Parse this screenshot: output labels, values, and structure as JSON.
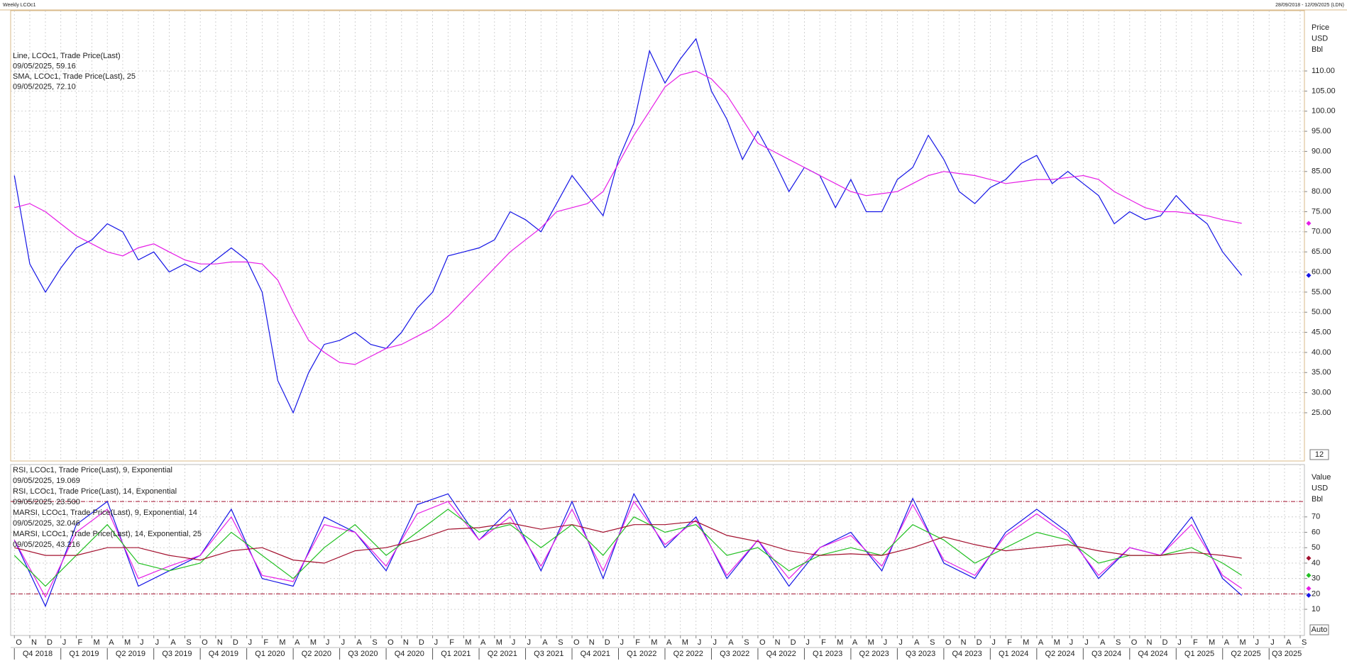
{
  "header": {
    "title": "Weekly LCOc1",
    "range": "28/09/2018 - 12/09/2025 (LDN)"
  },
  "chart_data": [
    {
      "type": "line",
      "unit_lines": [
        "Price",
        "USD",
        "Bbl"
      ],
      "scale_box": "12",
      "xlim": [
        2018.73,
        2025.69
      ],
      "ylim": [
        13,
        125
      ],
      "yticks": [
        {
          "value": 25,
          "label": "25.00"
        },
        {
          "value": 30,
          "label": "30.00"
        },
        {
          "value": 35,
          "label": "35.00"
        },
        {
          "value": 40,
          "label": "40.00"
        },
        {
          "value": 45,
          "label": "45.00"
        },
        {
          "value": 50,
          "label": "50.00"
        },
        {
          "value": 55,
          "label": "55.00"
        },
        {
          "value": 60,
          "label": "60.00"
        },
        {
          "value": 65,
          "label": "65.00"
        },
        {
          "value": 70,
          "label": "70.00"
        },
        {
          "value": 75,
          "label": "75.00"
        },
        {
          "value": 80,
          "label": "80.00"
        },
        {
          "value": 85,
          "label": "85.00"
        },
        {
          "value": 90,
          "label": "90.00"
        },
        {
          "value": 95,
          "label": "95.00"
        },
        {
          "value": 100,
          "label": "100.00"
        },
        {
          "value": 105,
          "label": "105.00"
        },
        {
          "value": 110,
          "label": "110.00"
        }
      ],
      "grid": true,
      "x": [
        2018.75,
        2018.833,
        2018.917,
        2019,
        2019.083,
        2019.167,
        2019.25,
        2019.333,
        2019.417,
        2019.5,
        2019.583,
        2019.667,
        2019.75,
        2019.833,
        2019.917,
        2020,
        2020.083,
        2020.167,
        2020.25,
        2020.333,
        2020.417,
        2020.5,
        2020.583,
        2020.667,
        2020.75,
        2020.833,
        2020.917,
        2021,
        2021.083,
        2021.167,
        2021.25,
        2021.333,
        2021.417,
        2021.5,
        2021.583,
        2021.667,
        2021.75,
        2021.833,
        2021.917,
        2022,
        2022.083,
        2022.167,
        2022.25,
        2022.333,
        2022.417,
        2022.5,
        2022.583,
        2022.667,
        2022.75,
        2022.833,
        2022.917,
        2023,
        2023.083,
        2023.167,
        2023.25,
        2023.333,
        2023.417,
        2023.5,
        2023.583,
        2023.667,
        2023.75,
        2023.833,
        2023.917,
        2024,
        2024.083,
        2024.167,
        2024.25,
        2024.333,
        2024.417,
        2024.5,
        2024.583,
        2024.667,
        2024.75,
        2024.833,
        2024.917,
        2025,
        2025.083,
        2025.167,
        2025.25,
        2025.353
      ],
      "series": [
        {
          "name": "Line, LCOc1, Trade Price(Last)",
          "last_label": "09/05/2025, 59.16",
          "color": "#1414e6",
          "values": [
            84,
            62,
            55,
            61,
            66,
            68,
            72,
            70,
            63,
            65,
            60,
            62,
            60,
            63,
            66,
            63,
            55,
            33,
            25,
            35,
            42,
            43,
            45,
            42,
            41,
            45,
            51,
            55,
            64,
            65,
            66,
            68,
            75,
            73,
            70,
            77,
            84,
            79,
            74,
            88,
            97,
            115,
            107,
            113,
            118,
            105,
            98,
            88,
            95,
            88,
            80,
            86,
            84,
            76,
            83,
            75,
            75,
            83,
            86,
            94,
            88,
            80,
            77,
            81,
            83,
            87,
            89,
            82,
            85,
            82,
            79,
            72,
            75,
            73,
            74,
            79,
            75,
            72,
            65,
            59.16
          ]
        },
        {
          "name": "SMA, LCOc1, Trade Price(Last),  25",
          "last_label": "09/05/2025, 72.10",
          "color": "#e61ee6",
          "values": [
            76,
            77,
            75,
            72,
            69,
            67,
            65,
            64,
            66,
            67,
            65,
            63,
            62,
            62,
            62.5,
            62.5,
            62,
            58,
            50,
            43,
            40,
            37.5,
            37,
            39,
            41,
            42,
            44,
            46,
            49,
            53,
            57,
            61,
            65,
            68,
            71,
            75,
            76,
            77,
            80,
            87,
            94,
            100,
            106,
            109,
            110,
            108,
            104,
            98,
            92,
            90,
            88,
            86,
            84,
            82,
            80,
            79,
            79.5,
            80,
            82,
            84,
            85,
            84.5,
            84,
            83,
            82,
            82.5,
            83,
            83,
            83.5,
            84,
            83,
            80,
            78,
            76,
            75,
            75,
            74.5,
            74,
            73,
            72.1
          ]
        }
      ]
    },
    {
      "type": "line",
      "unit_lines": [
        "Value",
        "USD",
        "Bbl"
      ],
      "scale_box": "Auto",
      "xlim": [
        2018.73,
        2025.69
      ],
      "ylim": [
        -7,
        104
      ],
      "yticks": [
        10,
        20,
        30,
        40,
        50,
        60,
        70
      ],
      "hlines": [
        80,
        20
      ],
      "grid": true,
      "x": [
        2018.75,
        2018.917,
        2019.083,
        2019.25,
        2019.417,
        2019.583,
        2019.75,
        2019.917,
        2020.083,
        2020.25,
        2020.417,
        2020.583,
        2020.75,
        2020.917,
        2021.083,
        2021.25,
        2021.417,
        2021.583,
        2021.75,
        2021.917,
        2022.083,
        2022.25,
        2022.417,
        2022.583,
        2022.75,
        2022.917,
        2023.083,
        2023.25,
        2023.417,
        2023.583,
        2023.75,
        2023.917,
        2024.083,
        2024.25,
        2024.417,
        2024.583,
        2024.75,
        2024.917,
        2025.083,
        2025.25,
        2025.353
      ],
      "series": [
        {
          "name": "RSI, LCOc1, Trade Price(Last),  9, Exponential",
          "last_label": "09/05/2025, 19.069",
          "color": "#1414e6",
          "values": [
            55,
            12,
            65,
            80,
            25,
            35,
            45,
            75,
            30,
            25,
            70,
            60,
            35,
            78,
            85,
            55,
            75,
            35,
            80,
            30,
            85,
            50,
            70,
            30,
            55,
            25,
            50,
            60,
            35,
            82,
            40,
            30,
            60,
            75,
            60,
            30,
            50,
            45,
            70,
            30,
            19.069
          ]
        },
        {
          "name": "RSI, LCOc1, Trade Price(Last),  14, Exponential",
          "last_label": "09/05/2025, 23.500",
          "color": "#e61ee6",
          "values": [
            55,
            18,
            60,
            75,
            30,
            38,
            45,
            70,
            32,
            28,
            65,
            60,
            38,
            72,
            80,
            55,
            70,
            38,
            75,
            35,
            80,
            52,
            68,
            32,
            55,
            30,
            50,
            58,
            38,
            78,
            42,
            32,
            58,
            72,
            58,
            32,
            50,
            45,
            65,
            32,
            23.5
          ]
        },
        {
          "name": "MARSI, LCOc1, Trade Price(Last),  9, Exponential, 14",
          "last_label": "09/05/2025, 32.046",
          "color": "#22c022",
          "values": [
            45,
            25,
            45,
            65,
            40,
            35,
            40,
            60,
            45,
            30,
            50,
            65,
            45,
            60,
            75,
            60,
            65,
            50,
            65,
            45,
            70,
            60,
            65,
            45,
            50,
            35,
            45,
            50,
            45,
            65,
            55,
            40,
            50,
            60,
            55,
            40,
            45,
            45,
            50,
            40,
            32.046
          ]
        },
        {
          "name": "MARSI, LCOc1, Trade Price(Last),  14, Exponential, 25",
          "last_label": "09/05/2025, 43.216",
          "color": "#a3102e",
          "values": [
            50,
            45,
            45,
            50,
            50,
            45,
            42,
            48,
            50,
            42,
            40,
            48,
            50,
            55,
            62,
            63,
            66,
            62,
            65,
            60,
            65,
            65,
            67,
            58,
            54,
            48,
            45,
            46,
            45,
            50,
            57,
            52,
            48,
            50,
            52,
            48,
            45,
            45,
            47,
            45,
            43.216
          ]
        }
      ],
      "xticks": [
        {
          "value": 2018.75,
          "label": "O"
        },
        {
          "value": 2018.833,
          "label": "N"
        },
        {
          "value": 2018.917,
          "label": "D"
        },
        {
          "value": 2019,
          "label": "J"
        },
        {
          "value": 2019.083,
          "label": "F"
        },
        {
          "value": 2019.167,
          "label": "M"
        },
        {
          "value": 2019.25,
          "label": "A"
        },
        {
          "value": 2019.333,
          "label": "M"
        },
        {
          "value": 2019.417,
          "label": "J"
        },
        {
          "value": 2019.5,
          "label": "J"
        },
        {
          "value": 2019.583,
          "label": "A"
        },
        {
          "value": 2019.667,
          "label": "S"
        },
        {
          "value": 2019.75,
          "label": "O"
        },
        {
          "value": 2019.833,
          "label": "N"
        },
        {
          "value": 2019.917,
          "label": "D"
        },
        {
          "value": 2020,
          "label": "J"
        },
        {
          "value": 2020.083,
          "label": "F"
        },
        {
          "value": 2020.167,
          "label": "M"
        },
        {
          "value": 2020.25,
          "label": "A"
        },
        {
          "value": 2020.333,
          "label": "M"
        },
        {
          "value": 2020.417,
          "label": "J"
        },
        {
          "value": 2020.5,
          "label": "J"
        },
        {
          "value": 2020.583,
          "label": "A"
        },
        {
          "value": 2020.667,
          "label": "S"
        },
        {
          "value": 2020.75,
          "label": "O"
        },
        {
          "value": 2020.833,
          "label": "N"
        },
        {
          "value": 2020.917,
          "label": "D"
        },
        {
          "value": 2021,
          "label": "J"
        },
        {
          "value": 2021.083,
          "label": "F"
        },
        {
          "value": 2021.167,
          "label": "M"
        },
        {
          "value": 2021.25,
          "label": "A"
        },
        {
          "value": 2021.333,
          "label": "M"
        },
        {
          "value": 2021.417,
          "label": "J"
        },
        {
          "value": 2021.5,
          "label": "J"
        },
        {
          "value": 2021.583,
          "label": "A"
        },
        {
          "value": 2021.667,
          "label": "S"
        },
        {
          "value": 2021.75,
          "label": "O"
        },
        {
          "value": 2021.833,
          "label": "N"
        },
        {
          "value": 2021.917,
          "label": "D"
        },
        {
          "value": 2022,
          "label": "J"
        },
        {
          "value": 2022.083,
          "label": "F"
        },
        {
          "value": 2022.167,
          "label": "M"
        },
        {
          "value": 2022.25,
          "label": "A"
        },
        {
          "value": 2022.333,
          "label": "M"
        },
        {
          "value": 2022.417,
          "label": "J"
        },
        {
          "value": 2022.5,
          "label": "J"
        },
        {
          "value": 2022.583,
          "label": "A"
        },
        {
          "value": 2022.667,
          "label": "S"
        },
        {
          "value": 2022.75,
          "label": "O"
        },
        {
          "value": 2022.833,
          "label": "N"
        },
        {
          "value": 2022.917,
          "label": "D"
        },
        {
          "value": 2023,
          "label": "J"
        },
        {
          "value": 2023.083,
          "label": "F"
        },
        {
          "value": 2023.167,
          "label": "M"
        },
        {
          "value": 2023.25,
          "label": "A"
        },
        {
          "value": 2023.333,
          "label": "M"
        },
        {
          "value": 2023.417,
          "label": "J"
        },
        {
          "value": 2023.5,
          "label": "J"
        },
        {
          "value": 2023.583,
          "label": "A"
        },
        {
          "value": 2023.667,
          "label": "S"
        },
        {
          "value": 2023.75,
          "label": "O"
        },
        {
          "value": 2023.833,
          "label": "N"
        },
        {
          "value": 2023.917,
          "label": "D"
        },
        {
          "value": 2024,
          "label": "J"
        },
        {
          "value": 2024.083,
          "label": "F"
        },
        {
          "value": 2024.167,
          "label": "M"
        },
        {
          "value": 2024.25,
          "label": "A"
        },
        {
          "value": 2024.333,
          "label": "M"
        },
        {
          "value": 2024.417,
          "label": "J"
        },
        {
          "value": 2024.5,
          "label": "J"
        },
        {
          "value": 2024.583,
          "label": "A"
        },
        {
          "value": 2024.667,
          "label": "S"
        },
        {
          "value": 2024.75,
          "label": "O"
        },
        {
          "value": 2024.833,
          "label": "N"
        },
        {
          "value": 2024.917,
          "label": "D"
        },
        {
          "value": 2025,
          "label": "J"
        },
        {
          "value": 2025.083,
          "label": "F"
        },
        {
          "value": 2025.167,
          "label": "M"
        },
        {
          "value": 2025.25,
          "label": "A"
        },
        {
          "value": 2025.333,
          "label": "M"
        },
        {
          "value": 2025.417,
          "label": "J"
        },
        {
          "value": 2025.5,
          "label": "J"
        },
        {
          "value": 2025.583,
          "label": "A"
        },
        {
          "value": 2025.667,
          "label": "S"
        }
      ],
      "quarter_ticks": [
        {
          "value": 2018.75,
          "label": "Q4 2018"
        },
        {
          "value": 2019,
          "label": "Q1 2019"
        },
        {
          "value": 2019.25,
          "label": "Q2 2019"
        },
        {
          "value": 2019.5,
          "label": "Q3 2019"
        },
        {
          "value": 2019.75,
          "label": "Q4 2019"
        },
        {
          "value": 2020,
          "label": "Q1 2020"
        },
        {
          "value": 2020.25,
          "label": "Q2 2020"
        },
        {
          "value": 2020.5,
          "label": "Q3 2020"
        },
        {
          "value": 2020.75,
          "label": "Q4 2020"
        },
        {
          "value": 2021,
          "label": "Q1 2021"
        },
        {
          "value": 2021.25,
          "label": "Q2 2021"
        },
        {
          "value": 2021.5,
          "label": "Q3 2021"
        },
        {
          "value": 2021.75,
          "label": "Q4 2021"
        },
        {
          "value": 2022,
          "label": "Q1 2022"
        },
        {
          "value": 2022.25,
          "label": "Q2 2022"
        },
        {
          "value": 2022.5,
          "label": "Q3 2022"
        },
        {
          "value": 2022.75,
          "label": "Q4 2022"
        },
        {
          "value": 2023,
          "label": "Q1 2023"
        },
        {
          "value": 2023.25,
          "label": "Q2 2023"
        },
        {
          "value": 2023.5,
          "label": "Q3 2023"
        },
        {
          "value": 2023.75,
          "label": "Q4 2023"
        },
        {
          "value": 2024,
          "label": "Q1 2024"
        },
        {
          "value": 2024.25,
          "label": "Q2 2024"
        },
        {
          "value": 2024.5,
          "label": "Q3 2024"
        },
        {
          "value": 2024.75,
          "label": "Q4 2024"
        },
        {
          "value": 2025,
          "label": "Q1 2025"
        },
        {
          "value": 2025.25,
          "label": "Q2 2025"
        },
        {
          "value": 2025.5,
          "label": "Q3 2025"
        }
      ]
    }
  ]
}
